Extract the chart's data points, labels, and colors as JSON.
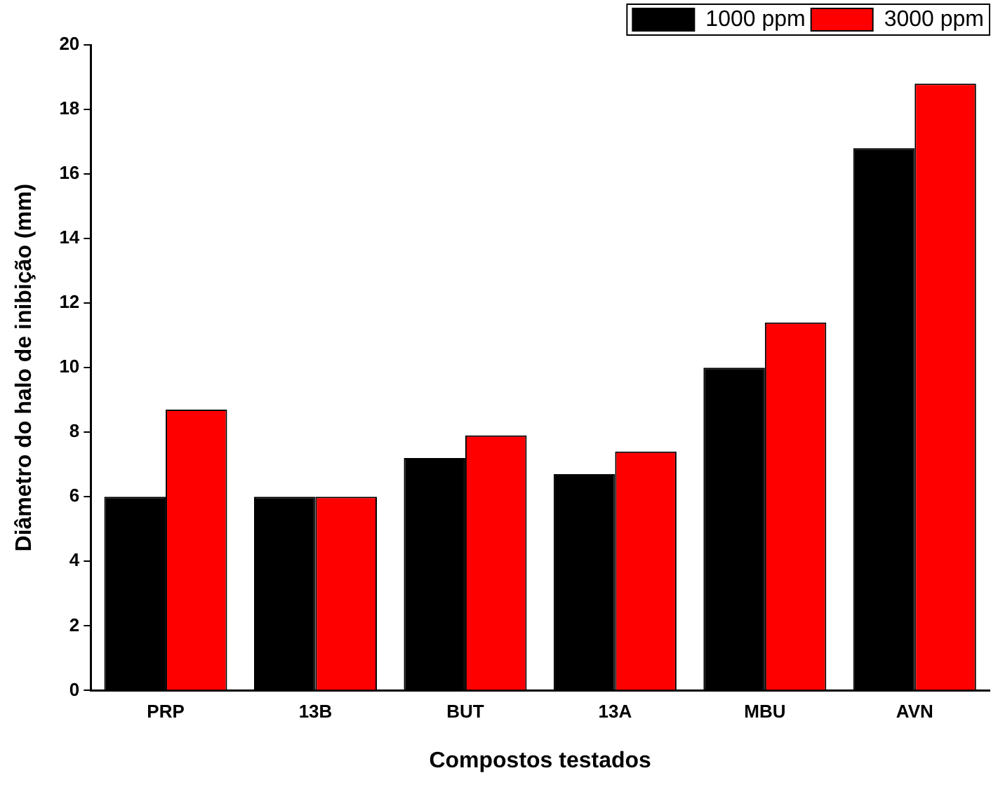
{
  "chart_data": {
    "type": "bar",
    "xlabel": "Compostos testados",
    "ylabel": "Diâmetro do halo de inibição (mm)",
    "categories": [
      "PRP",
      "13B",
      "BUT",
      "13A",
      "MBU",
      "AVN"
    ],
    "series": [
      {
        "name": "1000 ppm",
        "color": "#000000",
        "values": [
          6,
          6,
          7.2,
          6.7,
          10,
          16.8
        ]
      },
      {
        "name": "3000 ppm",
        "color": "#ff0000",
        "values": [
          8.7,
          6,
          7.9,
          7.4,
          11.4,
          18.8
        ]
      }
    ],
    "ylim": [
      0,
      20
    ],
    "yticks": [
      0,
      2,
      4,
      6,
      8,
      10,
      12,
      14,
      16,
      18,
      20
    ],
    "grid": false,
    "legend": "top right"
  }
}
